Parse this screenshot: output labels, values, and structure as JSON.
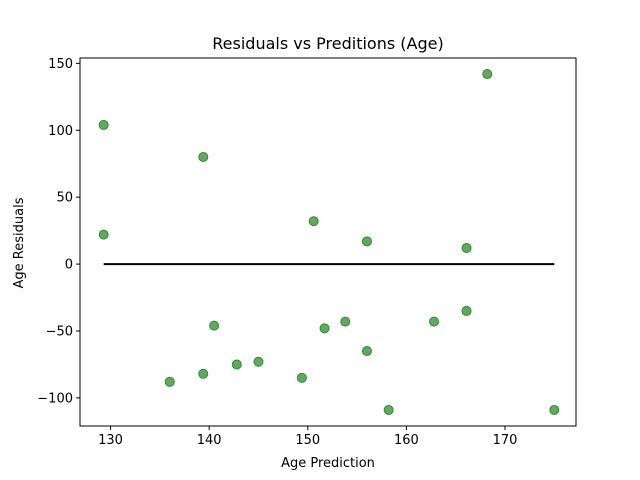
{
  "chart_data": {
    "type": "scatter",
    "title": "Residuals vs Preditions (Age)",
    "xlabel": "Age Prediction",
    "ylabel": "Age Residuals",
    "xlim": [
      126.9,
      177.2
    ],
    "ylim": [
      -121,
      154
    ],
    "xticks": [
      130,
      140,
      150,
      160,
      170
    ],
    "yticks": [
      -100,
      -50,
      0,
      50,
      100,
      150
    ],
    "grid": false,
    "point_color": "#2e8b2e",
    "point_alpha": 0.75,
    "series": [
      {
        "points": [
          {
            "x": 129.3,
            "y": 104
          },
          {
            "x": 129.3,
            "y": 22
          },
          {
            "x": 136.0,
            "y": -88
          },
          {
            "x": 139.4,
            "y": 80
          },
          {
            "x": 139.4,
            "y": -82
          },
          {
            "x": 140.5,
            "y": -46
          },
          {
            "x": 142.8,
            "y": -75
          },
          {
            "x": 145.0,
            "y": -73
          },
          {
            "x": 149.4,
            "y": -85
          },
          {
            "x": 150.6,
            "y": 32
          },
          {
            "x": 151.7,
            "y": -48
          },
          {
            "x": 153.8,
            "y": -43
          },
          {
            "x": 156.0,
            "y": 17
          },
          {
            "x": 156.0,
            "y": -65
          },
          {
            "x": 158.2,
            "y": -109
          },
          {
            "x": 162.8,
            "y": -43
          },
          {
            "x": 166.1,
            "y": 12
          },
          {
            "x": 166.1,
            "y": -35
          },
          {
            "x": 168.2,
            "y": 142
          },
          {
            "x": 175.0,
            "y": -109
          }
        ]
      }
    ],
    "reference_line": {
      "y": 0,
      "x_from": 129.3,
      "x_to": 175.0,
      "color": "#000000"
    }
  }
}
